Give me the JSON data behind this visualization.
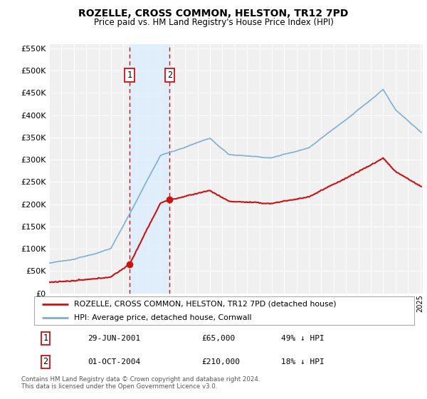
{
  "title": "ROZELLE, CROSS COMMON, HELSTON, TR12 7PD",
  "subtitle": "Price paid vs. HM Land Registry's House Price Index (HPI)",
  "legend_line1": "ROZELLE, CROSS COMMON, HELSTON, TR12 7PD (detached house)",
  "legend_line2": "HPI: Average price, detached house, Cornwall",
  "transaction1_label": "1",
  "transaction1_date": "29-JUN-2001",
  "transaction1_price": "£65,000",
  "transaction1_hpi": "49% ↓ HPI",
  "transaction1_year": 2001.5,
  "transaction1_value": 65000,
  "transaction2_label": "2",
  "transaction2_date": "01-OCT-2004",
  "transaction2_price": "£210,000",
  "transaction2_hpi": "18% ↓ HPI",
  "transaction2_year": 2004.75,
  "transaction2_value": 210000,
  "footnote": "Contains HM Land Registry data © Crown copyright and database right 2024.\nThis data is licensed under the Open Government Licence v3.0.",
  "ylim_min": 0,
  "ylim_max": 560000,
  "xlim_min": 1995,
  "xlim_max": 2025.2,
  "background_color": "#ffffff",
  "plot_bg_color": "#f0f0f0",
  "grid_color": "#ffffff",
  "hpi_color": "#7bafd4",
  "price_color": "#cc1111",
  "marker_color": "#cc1111",
  "shade_color": "#ddeeff",
  "dashed_color": "#cc1111"
}
